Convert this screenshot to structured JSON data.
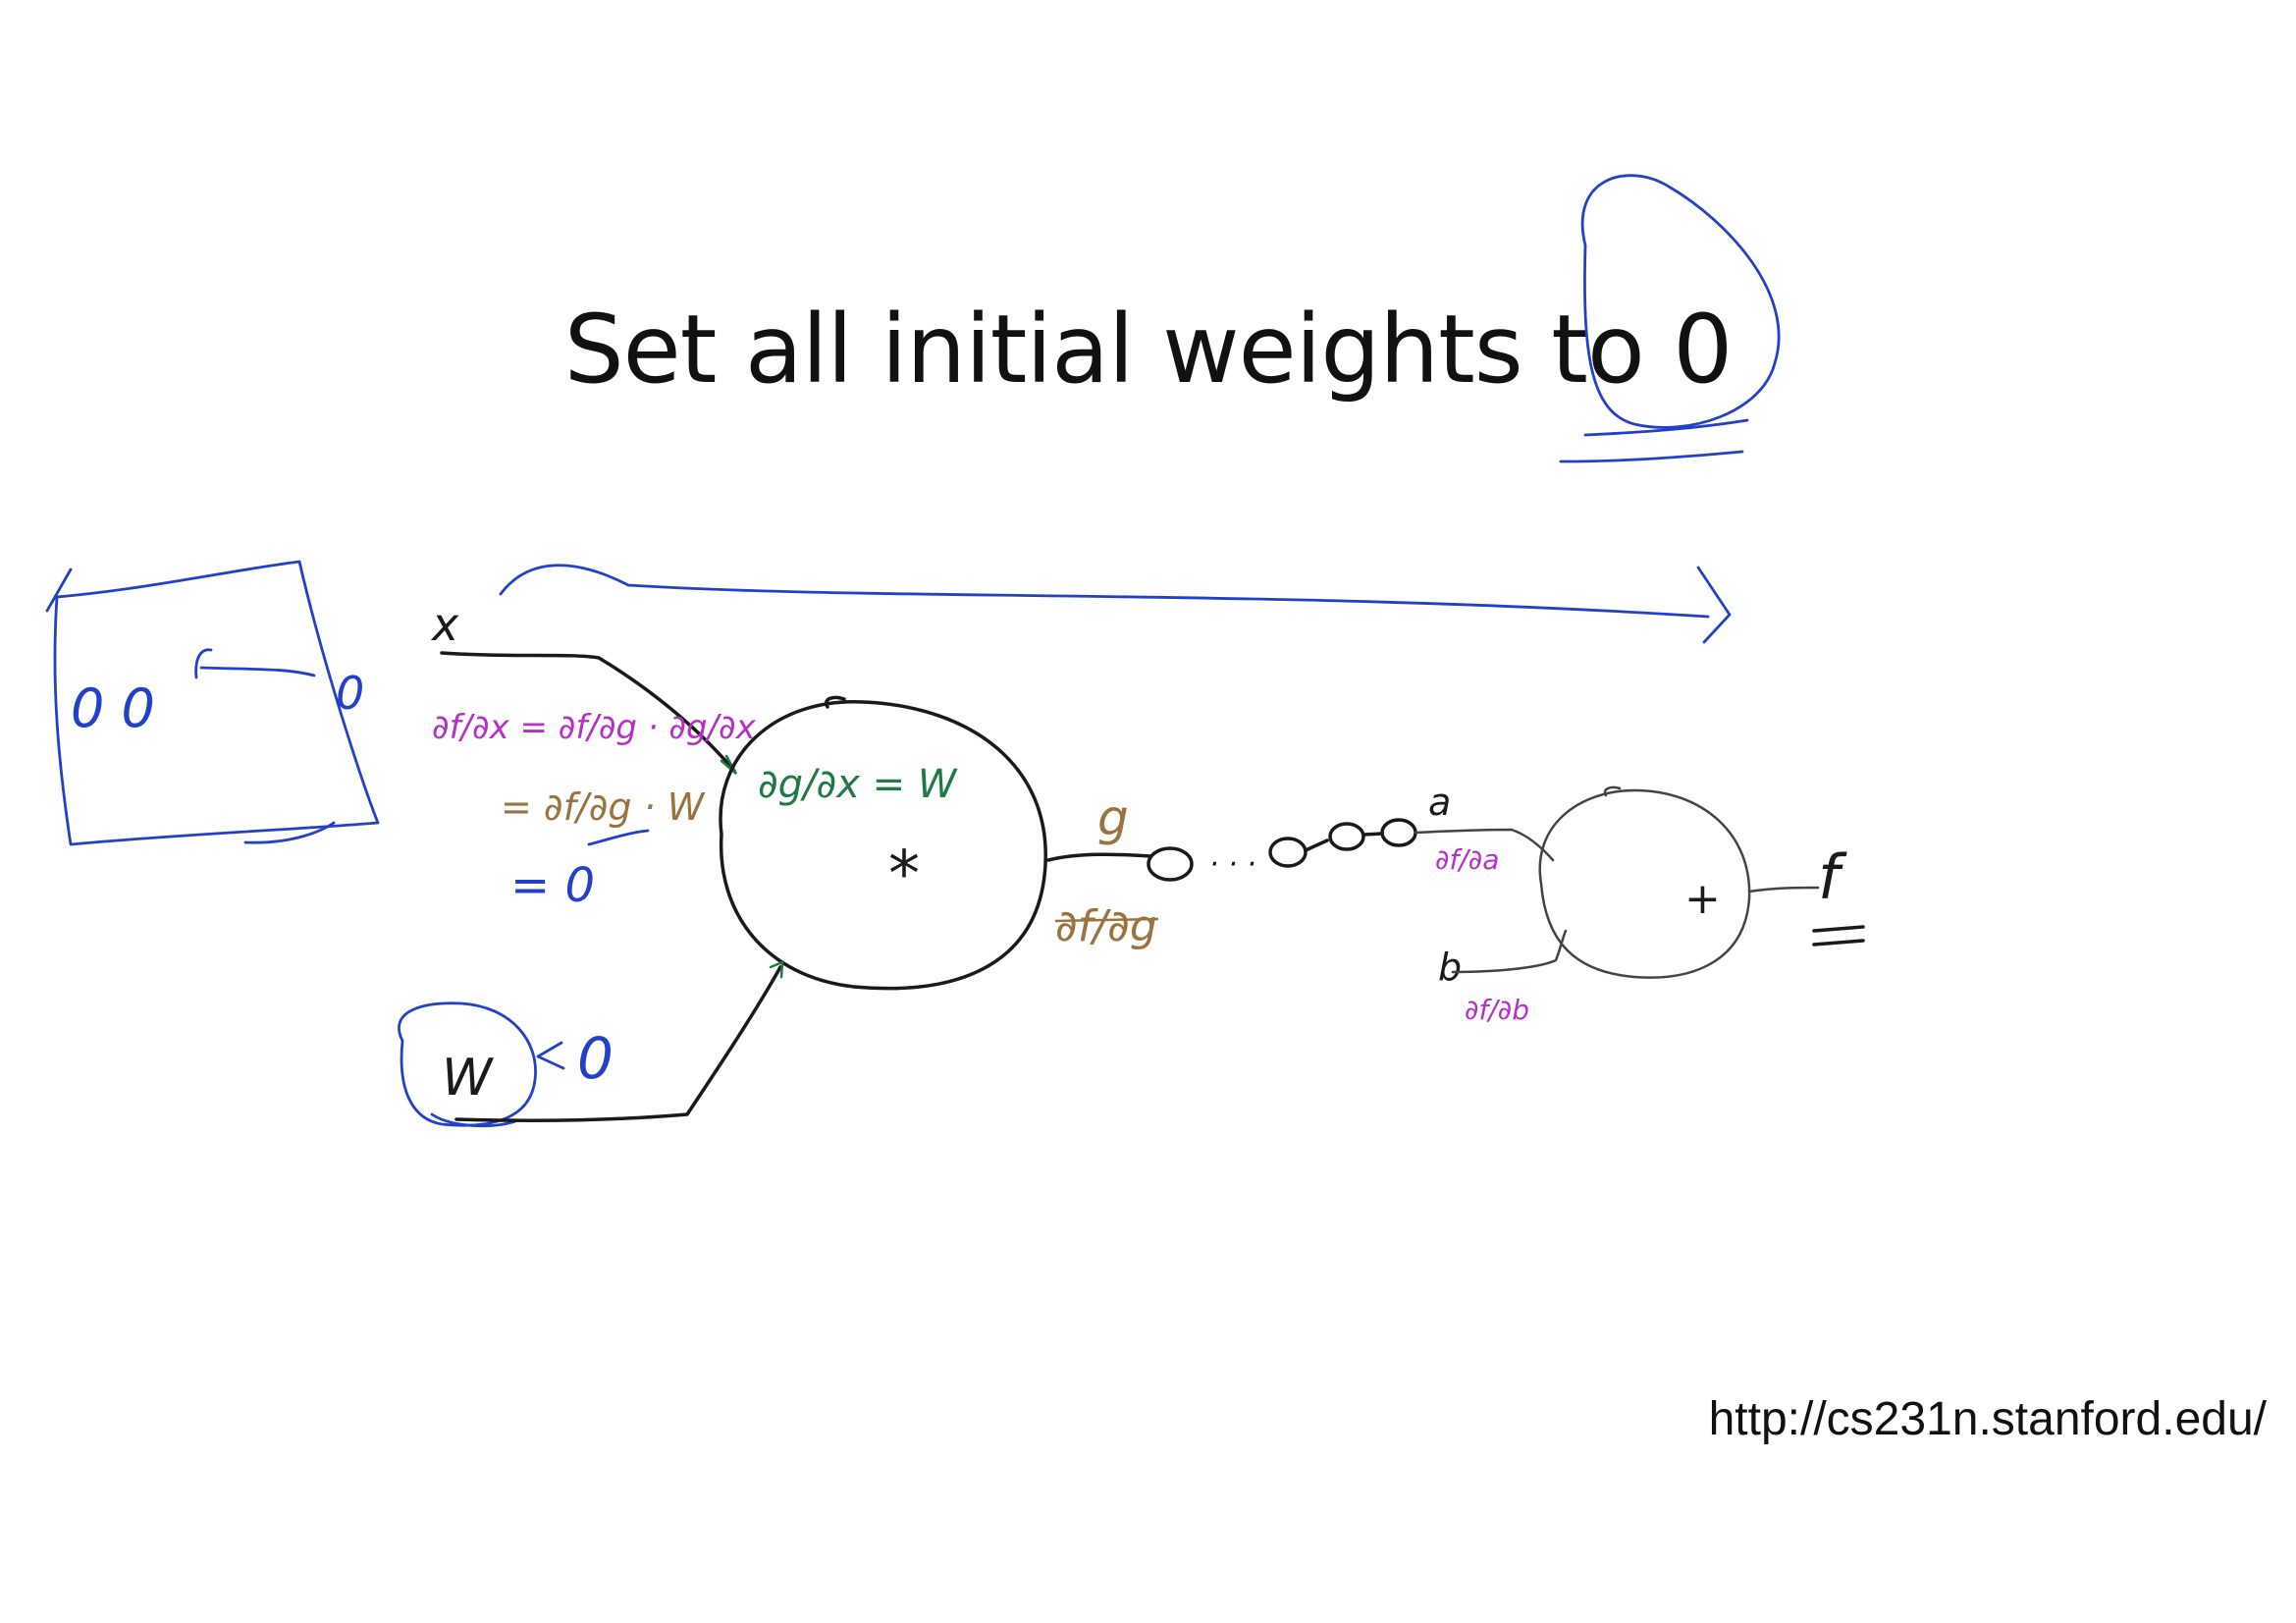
{
  "slide": {
    "title": "Set all initial weights to 0",
    "url": "http://cs231n.stanford.edu/"
  },
  "annotations": {
    "input_x": "x",
    "input_w": "W",
    "multiply_op": "*",
    "add_op": "+",
    "intermediate_g": "g",
    "input_a": "a",
    "input_b": "b",
    "output_f": "f",
    "chain_rule": "∂f/∂x = ∂f/∂g · ∂g/∂x",
    "chain_rule_sub": "= ∂f/∂g · W",
    "equals_zero": "= 0",
    "local_grad": "∂g/∂x = W",
    "upstream_grad": "∂f/∂g",
    "grad_a": "∂f/∂a",
    "grad_b": "∂f/∂b",
    "w_arrow_zero": "0",
    "box_zeros": "0 0",
    "box_zero_right": "0",
    "dots": "· · ·",
    "output_equals": "="
  },
  "colors": {
    "black_ink": "#1a1a1a",
    "blue_ink": "#2341c8",
    "purple_ink": "#b62fc8",
    "green_ink": "#1f7a44",
    "brown_ink": "#9a7440"
  }
}
